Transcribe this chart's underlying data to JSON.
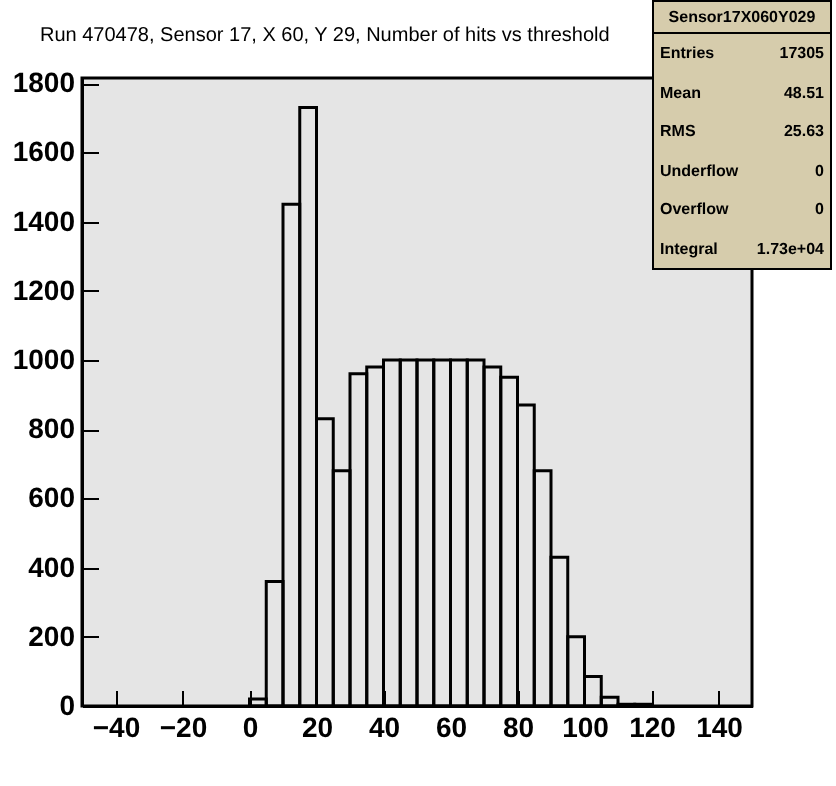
{
  "chart_data": {
    "type": "histogram",
    "title": "Run 470478, Sensor 17, X 60, Y 29, Number of hits vs threshold",
    "bins": [
      0,
      5,
      10,
      15,
      20,
      25,
      30,
      35,
      40,
      45,
      50,
      55,
      60,
      65,
      70,
      75,
      80,
      85,
      90,
      95,
      100,
      105,
      110,
      115,
      120
    ],
    "values": [
      20,
      360,
      1450,
      1730,
      830,
      680,
      960,
      980,
      1000,
      1000,
      1000,
      1000,
      1000,
      1000,
      980,
      950,
      870,
      680,
      430,
      200,
      85,
      25,
      5,
      5
    ],
    "color": "#000000",
    "xlim": [
      -50,
      150
    ],
    "xticks": [
      -40,
      -20,
      0,
      20,
      40,
      60,
      80,
      100,
      120,
      140
    ],
    "ylim": [
      0,
      1815
    ],
    "yticks": [
      0,
      200,
      400,
      600,
      800,
      1000,
      1200,
      1400,
      1600,
      1800
    ],
    "grid": false,
    "annotations": [
      "Sensor17X060Y029",
      "Entries",
      "17305",
      "Mean",
      "48.51",
      "RMS",
      "25.63",
      "Underflow",
      "0",
      "Overflow",
      "0",
      "Integral",
      "1.73e+04"
    ]
  }
}
